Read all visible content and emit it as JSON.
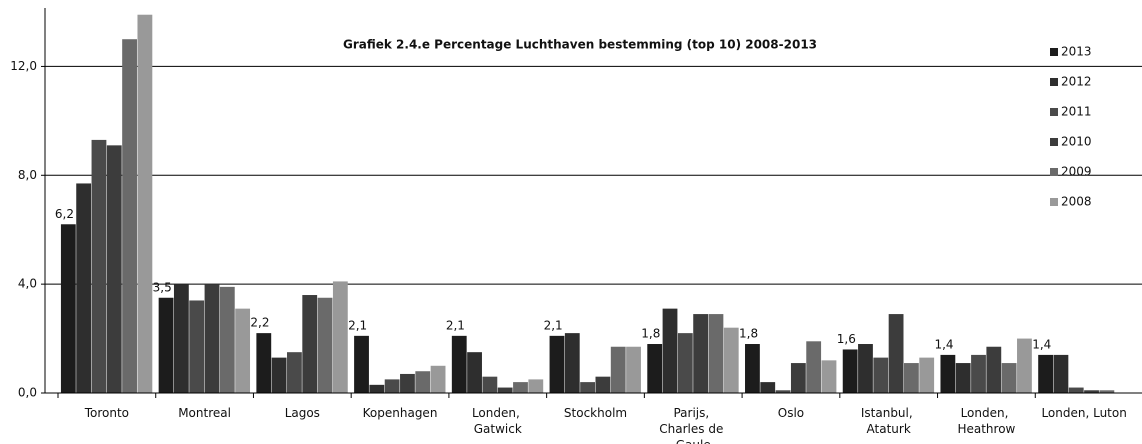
{
  "chart_data": {
    "type": "bar",
    "title": "Grafiek 2.4.e Percentage Luchthaven bestemming (top 10)  2008-2013",
    "categories": [
      "Toronto",
      "Montreal",
      "Lagos",
      "Kopenhagen",
      "Londen, Gatwick",
      "Stockholm",
      "Parijs, Charles de Gaule",
      "Oslo",
      "Istanbul, Ataturk",
      "Londen, Heathrow",
      "Londen, Luton"
    ],
    "series": [
      {
        "name": "2013",
        "color": "#1c1c1c",
        "values": [
          6.2,
          3.5,
          2.2,
          2.1,
          2.1,
          2.1,
          1.8,
          1.8,
          1.6,
          1.4,
          1.4
        ],
        "value_labels": [
          "6,2",
          "3,5",
          "2,2",
          "2,1",
          "2,1",
          "2,1",
          "1,8",
          "1,8",
          "1,6",
          "1,4",
          "1,4"
        ]
      },
      {
        "name": "2012",
        "color": "#2e2e2e",
        "values": [
          7.7,
          4.0,
          1.3,
          0.3,
          1.5,
          2.2,
          3.1,
          0.4,
          1.8,
          1.1,
          1.4
        ]
      },
      {
        "name": "2011",
        "color": "#4a4a4a",
        "values": [
          9.3,
          3.4,
          1.5,
          0.5,
          0.6,
          0.4,
          2.2,
          0.1,
          1.3,
          1.4,
          0.2
        ]
      },
      {
        "name": "2010",
        "color": "#3c3c3c",
        "values": [
          9.1,
          4.0,
          3.6,
          0.7,
          0.2,
          0.6,
          2.9,
          1.1,
          2.9,
          1.7,
          0.1
        ]
      },
      {
        "name": "2009",
        "color": "#6a6a6a",
        "values": [
          13.0,
          3.9,
          3.5,
          0.8,
          0.4,
          1.7,
          2.9,
          1.9,
          1.1,
          1.1,
          0.1
        ]
      },
      {
        "name": "2008",
        "color": "#999999",
        "values": [
          13.9,
          3.1,
          4.1,
          1.0,
          0.5,
          1.7,
          2.4,
          1.2,
          1.3,
          2.0,
          0.0
        ]
      }
    ],
    "ylim": [
      0,
      14
    ],
    "yticks": [
      {
        "value": 0,
        "label": "0,0"
      },
      {
        "value": 4,
        "label": "4,0"
      },
      {
        "value": 8,
        "label": "8,0"
      },
      {
        "value": 12,
        "label": "12,0"
      }
    ],
    "grid": true,
    "legend": "right"
  }
}
